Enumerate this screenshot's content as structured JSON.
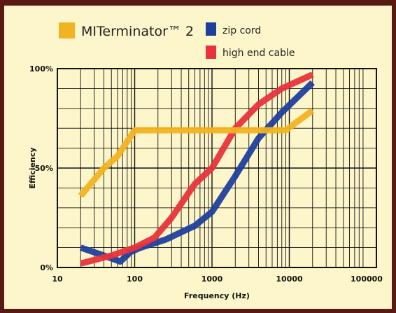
{
  "colors": {
    "background": "#fdf6ca",
    "grid": "#111111"
  },
  "chart_data": {
    "type": "line",
    "title": "",
    "xlabel": "Frequency (Hz)",
    "ylabel": "Efficiency",
    "x_scale": "log",
    "xlim": [
      20,
      22000
    ],
    "ylim": [
      0,
      100
    ],
    "grid": true,
    "legend_position": "top",
    "x_ticks": [
      {
        "value": 10,
        "label": "10"
      },
      {
        "value": 100,
        "label": "100"
      },
      {
        "value": 1000,
        "label": "1000"
      },
      {
        "value": 10000,
        "label": "10000"
      },
      {
        "value": 100000,
        "label": "100000"
      }
    ],
    "y_ticks": [
      {
        "value": 0,
        "label": "0%"
      },
      {
        "value": 50,
        "label": "50%"
      },
      {
        "value": 100,
        "label": "100%"
      }
    ],
    "series": [
      {
        "name": "MITerminator™ 2",
        "color": "#f2b322",
        "points": [
          [
            20,
            36
          ],
          [
            40,
            50
          ],
          [
            60,
            56
          ],
          [
            100,
            69
          ],
          [
            9000,
            69
          ],
          [
            20000,
            79
          ]
        ]
      },
      {
        "name": "zip cord",
        "color": "#1f3f9c",
        "points": [
          [
            20,
            10
          ],
          [
            40,
            6
          ],
          [
            65,
            3
          ],
          [
            90,
            8
          ],
          [
            120,
            10
          ],
          [
            250,
            14
          ],
          [
            600,
            21
          ],
          [
            1000,
            28
          ],
          [
            2000,
            46
          ],
          [
            4000,
            65
          ],
          [
            8000,
            78
          ],
          [
            20000,
            93
          ]
        ]
      },
      {
        "name": "high end cable",
        "color": "#e8333c",
        "points": [
          [
            20,
            2
          ],
          [
            50,
            6
          ],
          [
            100,
            10
          ],
          [
            180,
            15
          ],
          [
            300,
            25
          ],
          [
            600,
            42
          ],
          [
            1000,
            50
          ],
          [
            2000,
            70
          ],
          [
            4000,
            82
          ],
          [
            8000,
            90
          ],
          [
            20000,
            97
          ]
        ]
      }
    ]
  }
}
